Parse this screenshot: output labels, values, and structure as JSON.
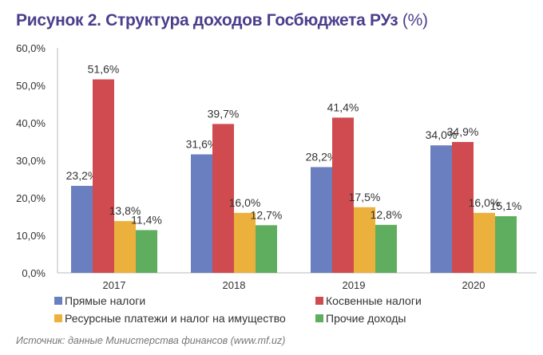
{
  "chart_data": {
    "type": "bar",
    "title": "Рисунок 2. Структура доходов Госбюджета РУз",
    "title_unit": "(%)",
    "categories": [
      "2017",
      "2018",
      "2019",
      "2020"
    ],
    "series": [
      {
        "name": "Прямые налоги",
        "color": "#6a7fc0",
        "values": [
          23.2,
          31.6,
          28.2,
          34.0
        ],
        "labels": [
          "23,2%",
          "31,6%",
          "28,2%",
          "34,0%"
        ]
      },
      {
        "name": "Косвенные налоги",
        "color": "#cf4b4f",
        "values": [
          51.6,
          39.7,
          41.4,
          34.9
        ],
        "labels": [
          "51,6%",
          "39,7%",
          "41,4%",
          "34,9%"
        ]
      },
      {
        "name": "Ресурсные платежи и налог на имущество",
        "color": "#ecb03c",
        "values": [
          13.8,
          16.0,
          17.5,
          16.0
        ],
        "labels": [
          "13,8%",
          "16,0%",
          "17,5%",
          "16,0%"
        ]
      },
      {
        "name": "Прочие доходы",
        "color": "#5fae5f",
        "values": [
          11.4,
          12.7,
          12.8,
          15.1
        ],
        "labels": [
          "11,4%",
          "12,7%",
          "12,8%",
          "15,1%"
        ]
      }
    ],
    "ylim": [
      0,
      60
    ],
    "yticks": [
      0,
      10,
      20,
      30,
      40,
      50,
      60
    ],
    "ytick_labels": [
      "0,0%",
      "10,0%",
      "20,0%",
      "30,0%",
      "40,0%",
      "50,0%",
      "60,0%"
    ],
    "grid": false,
    "legend_position": "bottom",
    "xlabel": "",
    "ylabel": ""
  },
  "source": "Источник: данные Министерства финансов (www.mf.uz)"
}
